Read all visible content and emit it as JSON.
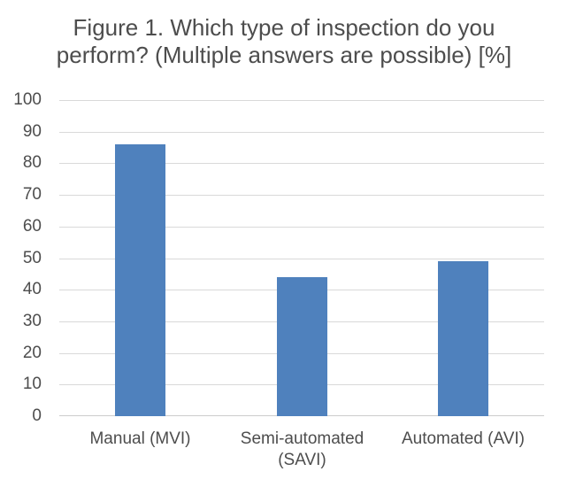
{
  "chart_data": {
    "type": "bar",
    "title": "Figure 1. Which type of inspection do you perform? (Multiple answers are possible) [%]",
    "title_lines": [
      "Figure 1. Which type of inspection do you",
      "perform? (Multiple answers are possible) [%]"
    ],
    "categories": [
      "Manual (MVI)",
      "Semi-automated (SAVI)",
      "Automated (AVI)"
    ],
    "values": [
      86,
      44,
      49
    ],
    "xlabel": "",
    "ylabel": "",
    "ylim": [
      0,
      100
    ],
    "ytick_step": 10,
    "yticks": [
      100,
      90,
      80,
      70,
      60,
      50,
      40,
      30,
      20,
      10,
      0
    ],
    "grid": true,
    "legend": false,
    "colors": {
      "bar": "#4F81BD",
      "gridline": "#D9D9D9",
      "axis_line": "#CCCCCC",
      "text": "#4D4D4D",
      "background": "#FFFFFF"
    }
  }
}
